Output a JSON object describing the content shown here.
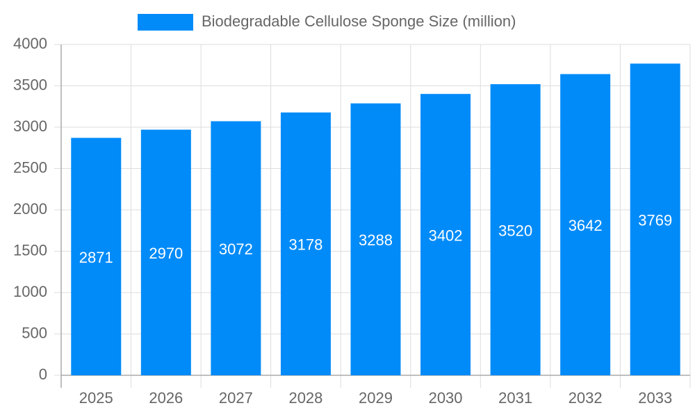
{
  "chart_data": {
    "type": "bar",
    "categories": [
      "2025",
      "2026",
      "2027",
      "2028",
      "2029",
      "2030",
      "2031",
      "2032",
      "2033"
    ],
    "series": [
      {
        "name": "Biodegradable Cellulose Sponge Size (million)",
        "color": "#018bf9",
        "values": [
          2871,
          2970,
          3072,
          3178,
          3288,
          3402,
          3520,
          3642,
          3769
        ]
      }
    ],
    "ylim": [
      0,
      4000
    ],
    "yticks": [
      0,
      500,
      1000,
      1500,
      2000,
      2500,
      3000,
      3500,
      4000
    ],
    "grid": true,
    "legend": "top",
    "data_labels": true
  }
}
